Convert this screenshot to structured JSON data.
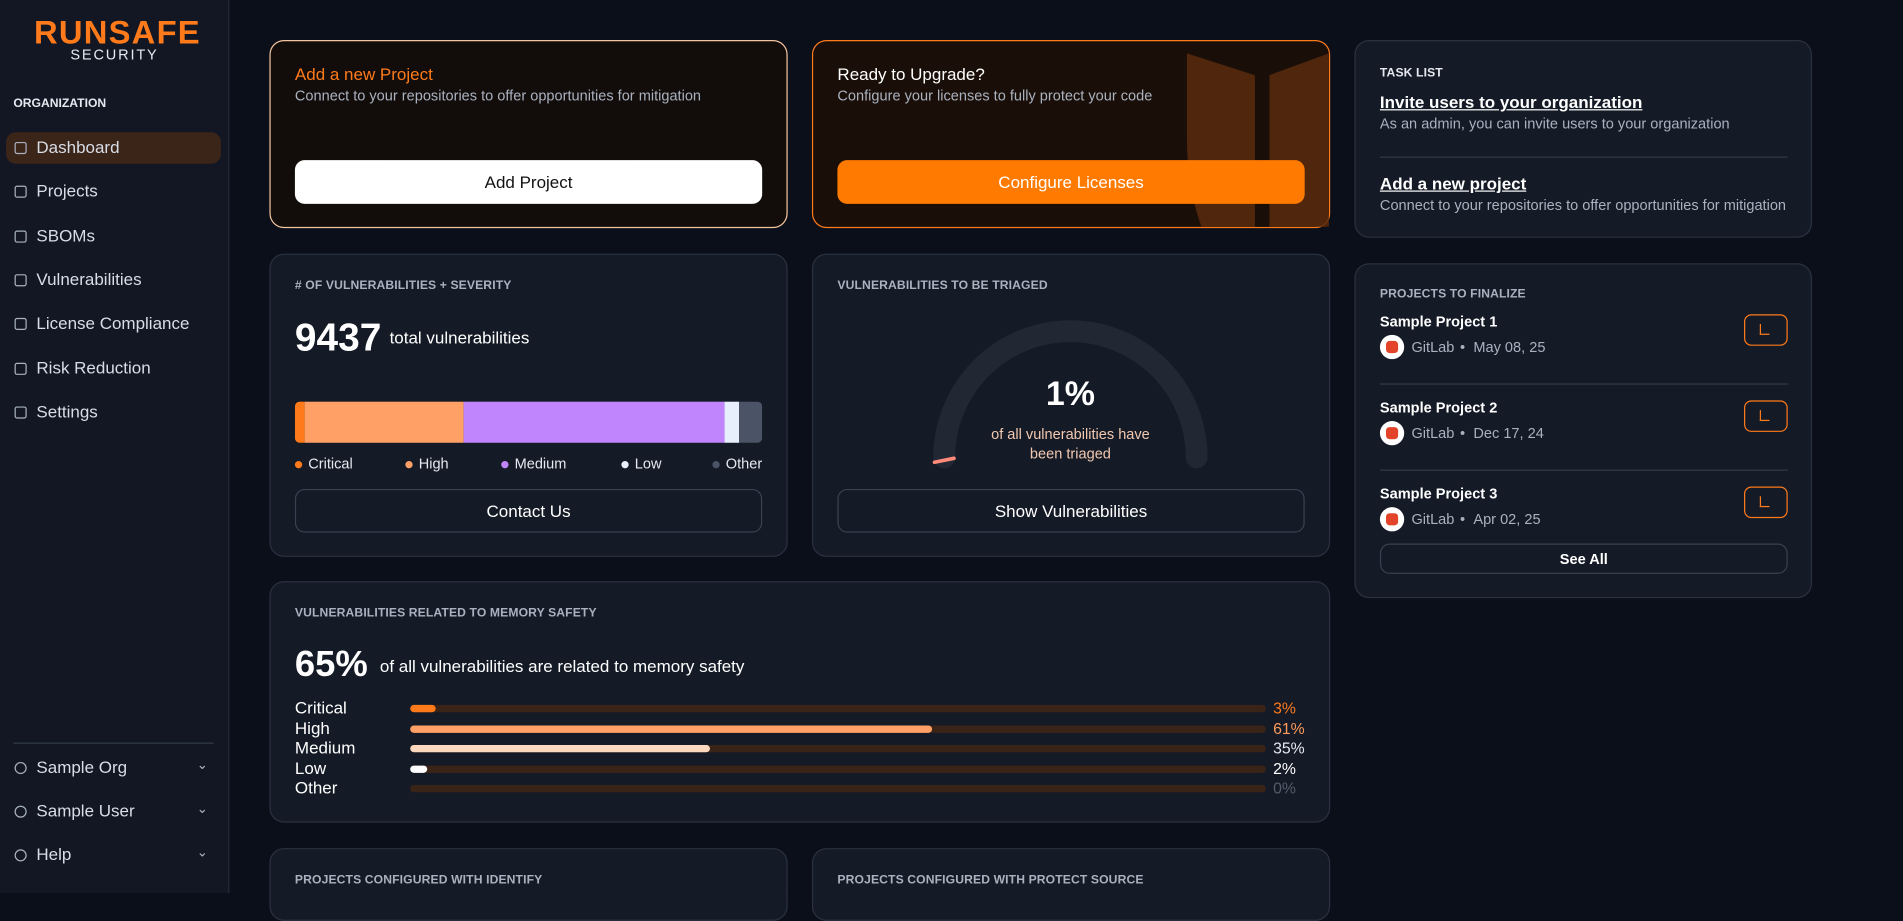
{
  "sidebar": {
    "logo": "RUNSAFE",
    "logo_sub": "SECURITY",
    "section": "ORGANIZATION",
    "nav": [
      "Dashboard",
      "Projects",
      "SBOMs",
      "Vulnerabilities",
      "License Compliance",
      "Risk Reduction",
      "Settings"
    ],
    "footer": [
      "Sample Org",
      "Sample User",
      "Help"
    ]
  },
  "add_project": {
    "title": "Add a new Project",
    "text": "Connect to your repositories to offer opportunities for mitigation",
    "button": "Add Project"
  },
  "upgrade": {
    "title": "Ready to Upgrade?",
    "text": "Configure your licenses to fully protect your code",
    "button": "Configure Licenses"
  },
  "task_list": {
    "title": "TASK LIST",
    "items": [
      {
        "link": "Invite users to your organization",
        "text": "As an admin, you can invite users to your organization"
      },
      {
        "link": "Add a new project",
        "text": "Connect to your repositories to offer opportunities for mitigation"
      }
    ]
  },
  "severity": {
    "title": "# OF VULNERABILITIES + SEVERITY",
    "total": 9437,
    "total_text": "total vulnerabilities",
    "categories": [
      "Critical",
      "High",
      "Medium",
      "Low",
      "Other"
    ],
    "values": [
      2,
      34,
      56,
      3,
      5
    ],
    "colors": [
      "#ff7a1a",
      "#ffa066",
      "#c084fc",
      "#e6effb",
      "#4b5366"
    ],
    "button": "Contact Us"
  },
  "triage": {
    "title": "VULNERABILITIES TO BE TRIAGED",
    "value": 1,
    "value_label": "1%",
    "text": "of all vulnerabilities have been triaged",
    "color": "#ff8a7a",
    "button": "Show Vulnerabilities"
  },
  "finalize": {
    "title": "PROJECTS TO FINALIZE",
    "projects": [
      {
        "name": "Sample Project 1",
        "source": "GitLab",
        "date": "May 08, 25"
      },
      {
        "name": "Sample Project 2",
        "source": "GitLab",
        "date": "Dec 17, 24"
      },
      {
        "name": "Sample Project 3",
        "source": "GitLab",
        "date": "Apr 02, 25"
      }
    ],
    "button": "See All"
  },
  "memory": {
    "title": "VULNERABILITIES RELATED TO MEMORY SAFETY",
    "value": 65,
    "value_label": "65%",
    "text": "of all vulnerabilities are related to memory safety",
    "categories": [
      "Critical",
      "High",
      "Medium",
      "Low",
      "Other"
    ],
    "values": [
      3,
      61,
      35,
      2,
      0
    ],
    "value_labels": [
      "3%",
      "61%",
      "35%",
      "2%",
      "0%"
    ],
    "colors": [
      "#ff7a1a",
      "#ffa066",
      "#ffd9bf",
      "#ffffff",
      "#6b7280"
    ],
    "label_colors": [
      "#ff7a1a",
      "#ff9a5a",
      "#e6e9ef",
      "#ffffff",
      "#555d6b"
    ],
    "xlim": [
      0,
      100
    ]
  },
  "bottom": [
    "PROJECTS CONFIGURED WITH IDENTIFY",
    "PROJECTS CONFIGURED WITH PROTECT SOURCE"
  ]
}
